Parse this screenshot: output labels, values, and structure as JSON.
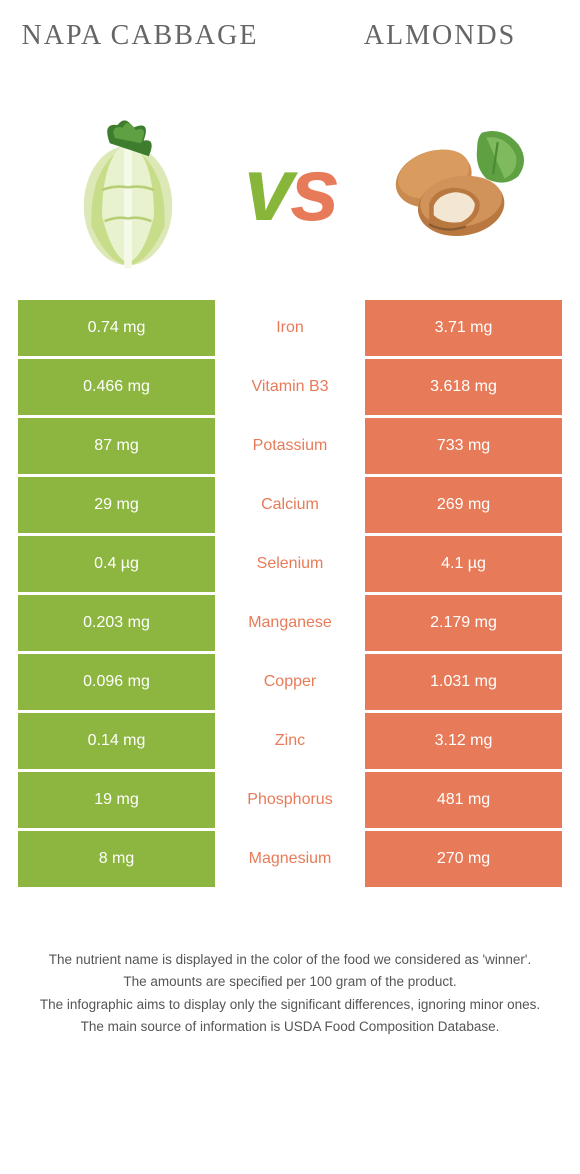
{
  "colors": {
    "left": "#8cb63f",
    "right": "#e77b59",
    "background": "#ffffff",
    "text": "#555555"
  },
  "foods": {
    "left": {
      "name": "Napa cabbage",
      "icon": "napa-cabbage"
    },
    "right": {
      "name": "Almonds",
      "icon": "almonds"
    }
  },
  "vs_label": "vs",
  "nutrients": [
    {
      "name": "Iron",
      "left": "0.74 mg",
      "right": "3.71 mg",
      "winner": "right"
    },
    {
      "name": "Vitamin B3",
      "left": "0.466 mg",
      "right": "3.618 mg",
      "winner": "right"
    },
    {
      "name": "Potassium",
      "left": "87 mg",
      "right": "733 mg",
      "winner": "right"
    },
    {
      "name": "Calcium",
      "left": "29 mg",
      "right": "269 mg",
      "winner": "right"
    },
    {
      "name": "Selenium",
      "left": "0.4 µg",
      "right": "4.1 µg",
      "winner": "right"
    },
    {
      "name": "Manganese",
      "left": "0.203 mg",
      "right": "2.179 mg",
      "winner": "right"
    },
    {
      "name": "Copper",
      "left": "0.096 mg",
      "right": "1.031 mg",
      "winner": "right"
    },
    {
      "name": "Zinc",
      "left": "0.14 mg",
      "right": "3.12 mg",
      "winner": "right"
    },
    {
      "name": "Phosphorus",
      "left": "19 mg",
      "right": "481 mg",
      "winner": "right"
    },
    {
      "name": "Magnesium",
      "left": "8 mg",
      "right": "270 mg",
      "winner": "right"
    }
  ],
  "footnotes": [
    "The nutrient name is displayed in the color of the food we considered as 'winner'.",
    "The amounts are specified per 100 gram of the product.",
    "The infographic aims to display only the significant differences, ignoring minor ones.",
    "The main source of information is USDA Food Composition Database."
  ]
}
